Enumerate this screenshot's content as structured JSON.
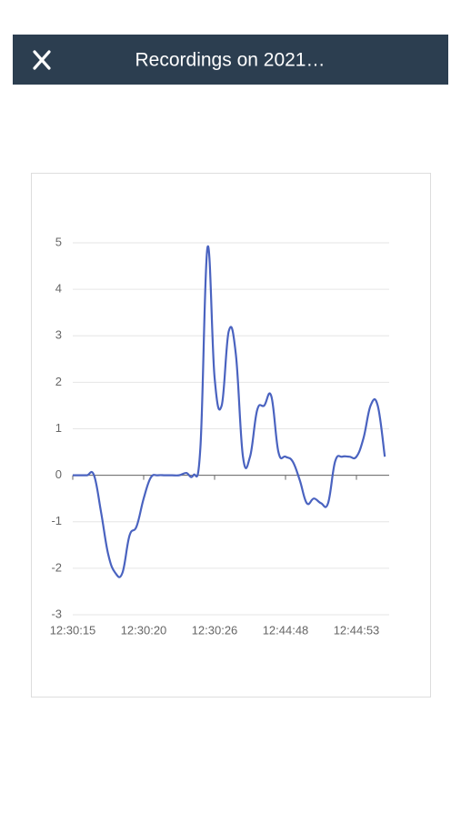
{
  "header": {
    "title": "Recordings on 2021…"
  },
  "chart_data": {
    "type": "line",
    "categories": [
      "12:30:15",
      null,
      null,
      null,
      null,
      null,
      null,
      null,
      null,
      null,
      "12:30:20",
      null,
      null,
      null,
      null,
      null,
      null,
      null,
      null,
      null,
      "12:30:26",
      null,
      null,
      null,
      null,
      null,
      null,
      null,
      null,
      null,
      "12:44:48",
      null,
      null,
      null,
      null,
      null,
      null,
      null,
      null,
      null,
      "12:44:53",
      null,
      null,
      null,
      null
    ],
    "series": [
      {
        "color": "#4a63c0",
        "values": [
          0,
          0,
          0,
          0,
          -0.8,
          -1.7,
          -2.1,
          -2.1,
          -1.3,
          -1.1,
          -0.5,
          -0.05,
          0,
          0,
          0,
          0,
          0.05,
          0,
          0.6,
          4.9,
          2.1,
          1.5,
          3.1,
          2.6,
          0.4,
          0.4,
          1.4,
          1.5,
          1.7,
          0.5,
          0.4,
          0.3,
          -0.1,
          -0.6,
          -0.5,
          -0.6,
          -0.6,
          0.3,
          0.4,
          0.4,
          0.4,
          0.8,
          1.5,
          1.5,
          0.4
        ]
      }
    ],
    "ylim": [
      -3,
      5
    ],
    "yticks": [
      -3,
      -2,
      -1,
      0,
      1,
      2,
      3,
      4,
      5
    ],
    "grid": true
  }
}
